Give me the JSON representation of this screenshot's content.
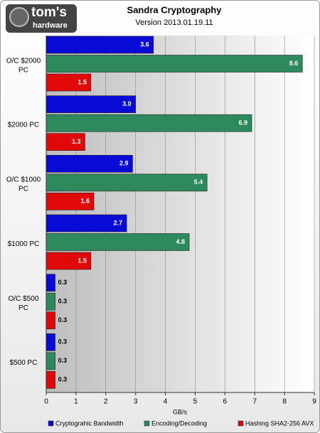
{
  "logo": {
    "line1": "tom's",
    "line2": "hardware"
  },
  "chart_data": {
    "type": "hbar",
    "title": "Sandra Cryptography",
    "subtitle": "Version 2013.01.19.11",
    "x_label": "GB/s",
    "categories": [
      "O/C $2000 PC",
      "$2000 PC",
      "O/C $1000 PC",
      "$1000 PC",
      "O/C $500 PC",
      "$500 PC"
    ],
    "series": [
      {
        "name": "Cryptograhic Bandwidth",
        "color": "#0a0ad6",
        "values": [
          3.6,
          3.0,
          2.9,
          2.7,
          0.3,
          0.3
        ],
        "value_labels": [
          "3.6",
          "3.0",
          "2.9",
          "2.7",
          "0.3",
          "0.3"
        ]
      },
      {
        "name": "Encoding/Decoding",
        "color": "#2e8a5c",
        "values": [
          8.6,
          6.9,
          5.4,
          4.8,
          0.3,
          0.3
        ],
        "value_labels": [
          "8.6",
          "6.9",
          "5.4",
          "4.8",
          "0.3",
          "0.3"
        ]
      },
      {
        "name": "Hashing SHA2-256 AVX",
        "color": "#e00808",
        "values": [
          1.5,
          1.3,
          1.6,
          1.5,
          0.3,
          0.3
        ],
        "value_labels": [
          "1.5",
          "1.3",
          "1.6",
          "1.5",
          "0.3",
          "0.3"
        ]
      }
    ],
    "xlim": [
      0,
      9
    ],
    "xticks": [
      0,
      1,
      2,
      3,
      4,
      5,
      6,
      7,
      8,
      9
    ],
    "grid": true,
    "legend": "bottom"
  }
}
